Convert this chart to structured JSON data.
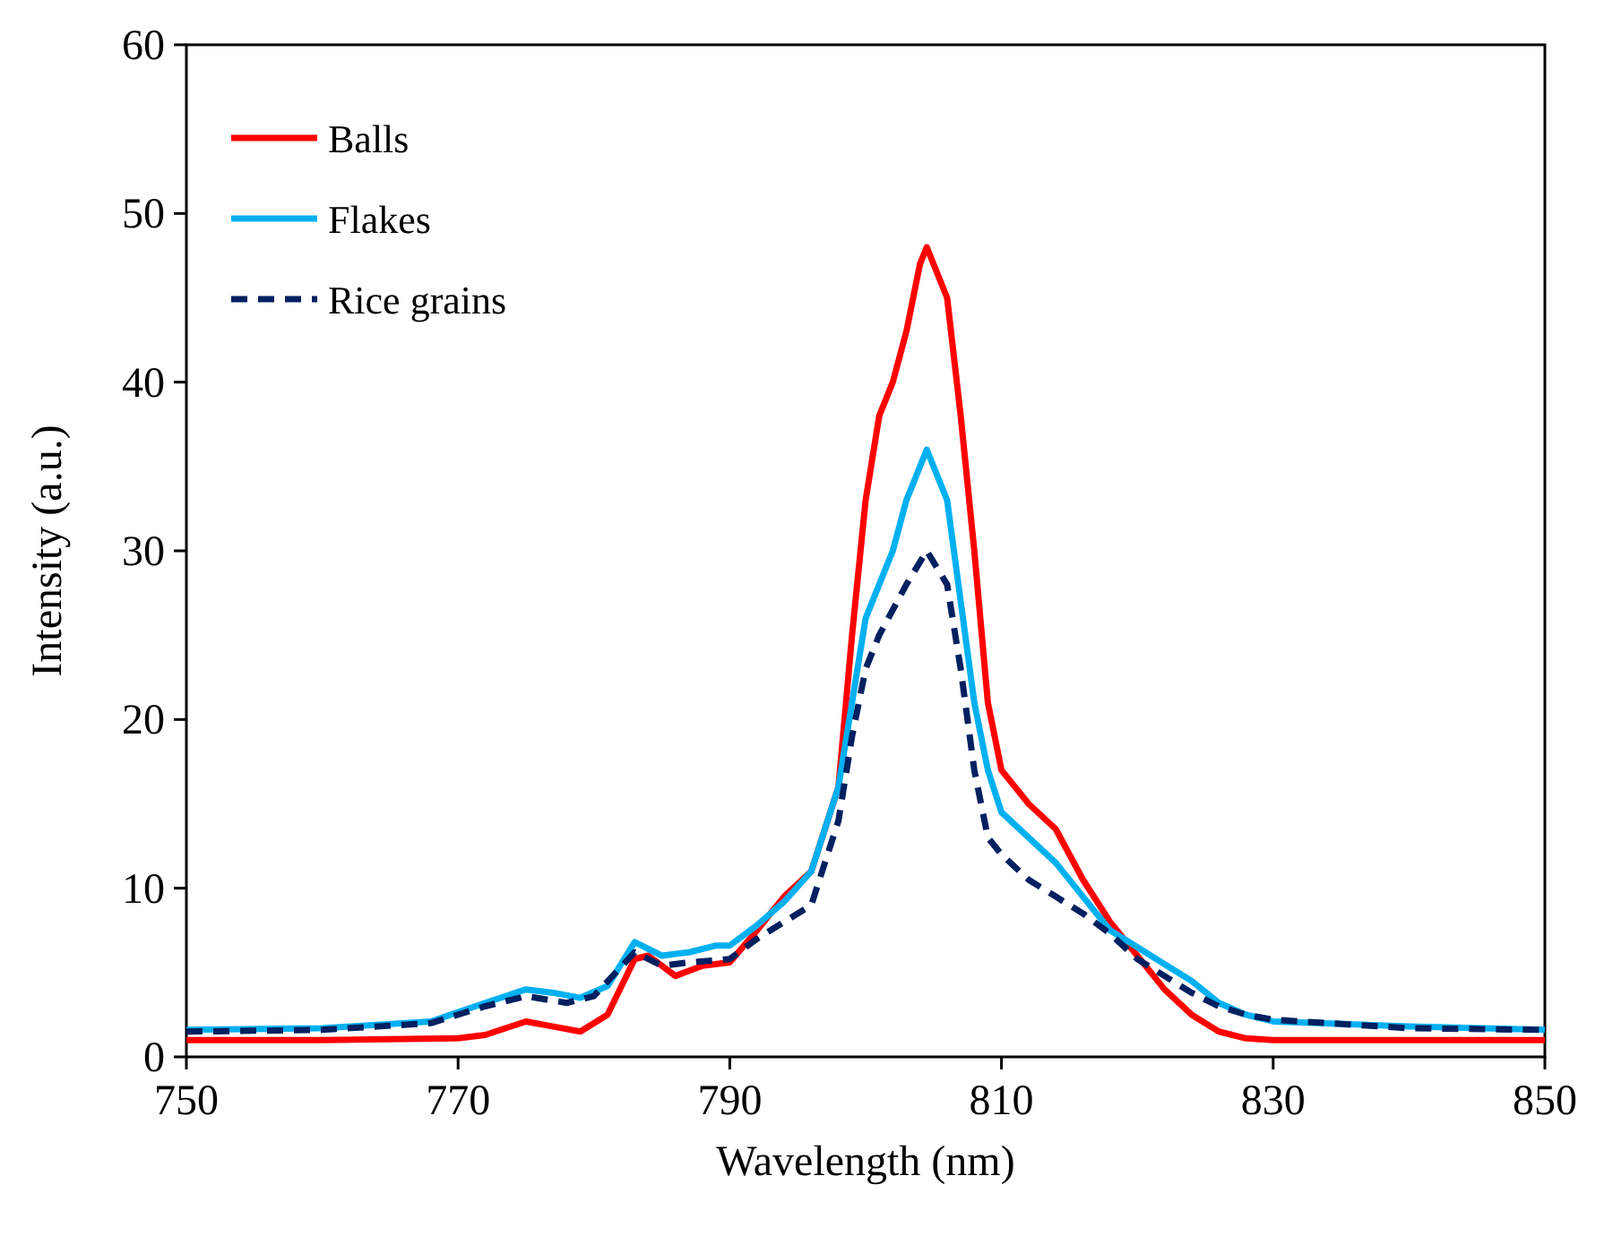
{
  "chart_data": {
    "type": "line",
    "xlabel": "Wavelength (nm)",
    "ylabel": "Intensity (a.u.)",
    "xlim": [
      750,
      850
    ],
    "xticks": [
      750,
      770,
      790,
      810,
      830,
      850
    ],
    "ylim": [
      0,
      60
    ],
    "yticks": [
      0,
      10,
      20,
      30,
      40,
      50,
      60
    ],
    "grid": false,
    "legend": "top left",
    "marker": "none",
    "series": [
      {
        "name": "Balls",
        "color": "#ff0000",
        "line_style": "solid",
        "x": [
          750,
          760,
          770,
          772,
          775,
          777,
          779,
          781,
          783,
          784,
          786,
          788,
          790,
          792,
          794,
          796,
          798,
          799,
          800,
          801,
          802,
          803,
          804,
          804.5,
          806,
          807,
          808,
          809,
          810,
          812,
          814,
          816,
          818,
          820,
          822,
          824,
          826,
          828,
          830,
          840,
          850
        ],
        "values": [
          1.0,
          1.0,
          1.1,
          1.3,
          2.1,
          1.8,
          1.5,
          2.5,
          5.8,
          6.0,
          4.8,
          5.4,
          5.6,
          7.5,
          9.5,
          11,
          16,
          25,
          33,
          38,
          40,
          43,
          47,
          48,
          45,
          38,
          30,
          21,
          17,
          15,
          13.5,
          10.5,
          8,
          6,
          4,
          2.5,
          1.5,
          1.1,
          1.0,
          1.0,
          1.0
        ]
      },
      {
        "name": "Flakes",
        "color": "#00b0f0",
        "line_style": "solid",
        "x": [
          750,
          760,
          768,
          772,
          775,
          777,
          779,
          781,
          783,
          785,
          787,
          789,
          790,
          792,
          794,
          796,
          798,
          799,
          800,
          801,
          802,
          803,
          804.5,
          806,
          807,
          808,
          809,
          810,
          812,
          814,
          816,
          818,
          820,
          822,
          824,
          826,
          828,
          830,
          840,
          850
        ],
        "values": [
          1.6,
          1.7,
          2.1,
          3.2,
          4.0,
          3.8,
          3.5,
          4.2,
          6.8,
          6.0,
          6.2,
          6.6,
          6.6,
          7.8,
          9.2,
          11,
          16,
          21,
          26,
          28,
          30,
          33,
          36,
          33,
          27,
          21,
          17,
          14.5,
          13,
          11.5,
          9.5,
          7.5,
          6.5,
          5.5,
          4.5,
          3.2,
          2.5,
          2.1,
          1.8,
          1.6
        ]
      },
      {
        "name": "Rice grains",
        "color": "#002060",
        "line_style": "dashed",
        "x": [
          750,
          760,
          768,
          772,
          775,
          778,
          780,
          783,
          785,
          787,
          790,
          792,
          794,
          796,
          798,
          799,
          800,
          801,
          803,
          804.5,
          806,
          807,
          808,
          809,
          810,
          812,
          814,
          816,
          818,
          820,
          822,
          824,
          826,
          828,
          830,
          840,
          850
        ],
        "values": [
          1.5,
          1.6,
          2.0,
          3.0,
          3.6,
          3.2,
          3.6,
          6.2,
          5.4,
          5.6,
          5.8,
          7.0,
          8.0,
          9.0,
          14,
          19,
          23,
          25,
          28,
          30,
          28,
          23,
          17,
          13,
          12,
          10.5,
          9.5,
          8.5,
          7.3,
          5.8,
          4.8,
          3.8,
          3.0,
          2.5,
          2.2,
          1.7,
          1.6
        ]
      }
    ]
  }
}
